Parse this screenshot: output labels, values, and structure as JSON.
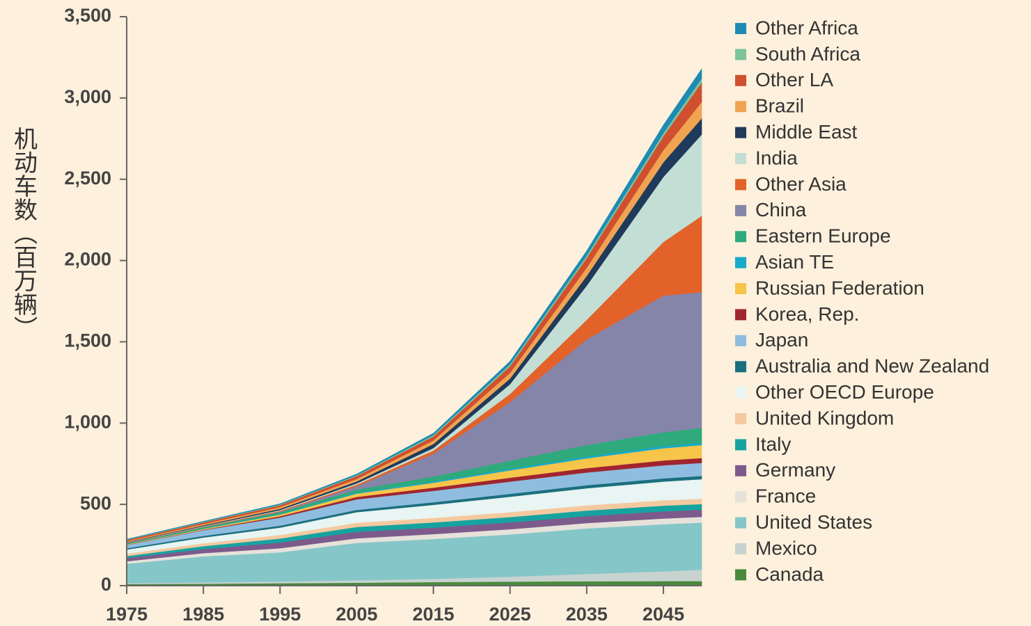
{
  "chart_data": {
    "type": "stacked_area",
    "ylabel": "机动车数（百万辆）",
    "x": [
      1975,
      1985,
      1995,
      2005,
      2015,
      2025,
      2035,
      2045,
      2050
    ],
    "xlim": [
      1975,
      2050
    ],
    "xticks": [
      1975,
      1985,
      1995,
      2005,
      2015,
      2025,
      2035,
      2045
    ],
    "ylim": [
      0,
      3500
    ],
    "yticks": [
      0,
      500,
      {
        "value": 1000,
        "label": "1,000"
      },
      {
        "value": 1500,
        "label": "1,500"
      },
      {
        "value": 2000,
        "label": "2,000"
      },
      {
        "value": 2500,
        "label": "2,500"
      },
      {
        "value": 3000,
        "label": "3,000"
      },
      {
        "value": 3500,
        "label": "3,500"
      }
    ],
    "series": [
      {
        "name": "Canada",
        "color": "#4a8a3c",
        "values": [
          10,
          12,
          15,
          18,
          22,
          25,
          27,
          28,
          28
        ]
      },
      {
        "name": "Mexico",
        "color": "#c8d3d0",
        "values": [
          5,
          8,
          10,
          15,
          20,
          30,
          45,
          60,
          70
        ]
      },
      {
        "name": "United States",
        "color": "#85c6c8",
        "values": [
          120,
          160,
          180,
          230,
          245,
          260,
          280,
          290,
          290
        ]
      },
      {
        "name": "France",
        "color": "#e6e2da",
        "values": [
          15,
          20,
          25,
          28,
          30,
          32,
          33,
          35,
          35
        ]
      },
      {
        "name": "Germany",
        "color": "#7d5a8c",
        "values": [
          20,
          25,
          35,
          40,
          40,
          42,
          43,
          44,
          44
        ]
      },
      {
        "name": "Italy",
        "color": "#16a3a0",
        "values": [
          12,
          18,
          25,
          30,
          32,
          33,
          34,
          35,
          35
        ]
      },
      {
        "name": "United Kingdom",
        "color": "#f5c9a0",
        "values": [
          15,
          18,
          22,
          26,
          28,
          30,
          32,
          33,
          33
        ]
      },
      {
        "name": "Other OECD Europe",
        "color": "#e8f5f2",
        "values": [
          25,
          35,
          45,
          65,
          80,
          95,
          105,
          115,
          120
        ]
      },
      {
        "name": "Australia and New Zealand",
        "color": "#1b6f7e",
        "values": [
          8,
          10,
          12,
          14,
          16,
          18,
          19,
          20,
          20
        ]
      },
      {
        "name": "Japan",
        "color": "#8fbde0",
        "values": [
          20,
          35,
          50,
          65,
          70,
          75,
          78,
          80,
          80
        ]
      },
      {
        "name": "Korea, Rep.",
        "color": "#a0252f",
        "values": [
          1,
          3,
          8,
          15,
          20,
          24,
          27,
          30,
          30
        ]
      },
      {
        "name": "Russian Federation",
        "color": "#f6c54a",
        "values": [
          3,
          5,
          10,
          20,
          30,
          45,
          60,
          75,
          80
        ]
      },
      {
        "name": "Asian TE",
        "color": "#19a9c9",
        "values": [
          1,
          2,
          3,
          5,
          8,
          10,
          12,
          14,
          15
        ]
      },
      {
        "name": "Eastern Europe",
        "color": "#2eaa7c",
        "values": [
          5,
          8,
          12,
          20,
          30,
          50,
          70,
          85,
          90
        ]
      },
      {
        "name": "China",
        "color": "#8585aa",
        "values": [
          1,
          1,
          3,
          20,
          140,
          360,
          650,
          840,
          835
        ]
      },
      {
        "name": "Other Asia",
        "color": "#e2622a",
        "values": [
          2,
          3,
          5,
          10,
          20,
          50,
          120,
          330,
          470
        ]
      },
      {
        "name": "India",
        "color": "#c3ded5",
        "values": [
          2,
          3,
          5,
          8,
          15,
          60,
          210,
          400,
          500
        ]
      },
      {
        "name": "Middle East",
        "color": "#1f3a5a",
        "values": [
          3,
          5,
          8,
          12,
          25,
          35,
          60,
          90,
          100
        ]
      },
      {
        "name": "Brazil",
        "color": "#f0a452",
        "values": [
          5,
          8,
          10,
          15,
          22,
          35,
          50,
          75,
          100
        ]
      },
      {
        "name": "Other LA",
        "color": "#d04f2f",
        "values": [
          8,
          10,
          12,
          18,
          25,
          40,
          60,
          85,
          120
        ]
      },
      {
        "name": "South Africa",
        "color": "#7cc49a",
        "values": [
          2,
          3,
          4,
          5,
          8,
          12,
          15,
          20,
          25
        ]
      },
      {
        "name": "Other Africa",
        "color": "#1e8bb5",
        "values": [
          3,
          4,
          5,
          8,
          12,
          20,
          30,
          50,
          60
        ]
      }
    ]
  }
}
